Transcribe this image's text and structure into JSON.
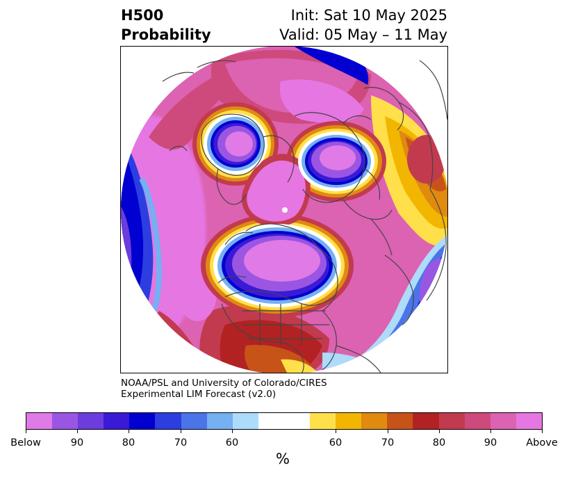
{
  "header": {
    "title_line1": "H500",
    "title_line2": "Probability",
    "init": "Init: Sat 10 May 2025",
    "valid": "Valid: 05 May – 11 May"
  },
  "credit": {
    "line1": "NOAA/PSL and University of Colorado/CIRES",
    "line2": "Experimental LIM Forecast (v2.0)"
  },
  "colorbar": {
    "unit": "%",
    "below_colors": [
      "#e07ae6",
      "#9a56e3",
      "#6c3cdc",
      "#3a1ad6",
      "#0000d0",
      "#2c3ee0",
      "#4a74e8",
      "#74b0f2",
      "#acdcfa"
    ],
    "neutral_color": "#ffffff",
    "above_colors": [
      "#ffe04a",
      "#f2b600",
      "#e08a10",
      "#c85318",
      "#b22222",
      "#c23a4e",
      "#cf4a7c",
      "#dc62b2",
      "#e676e2"
    ],
    "ticks": [
      "Below",
      "90",
      "80",
      "70",
      "60",
      "60",
      "70",
      "80",
      "90",
      "Above"
    ]
  },
  "map": {
    "projection": "north-polar-stereographic",
    "coastline_color": "#444444"
  }
}
